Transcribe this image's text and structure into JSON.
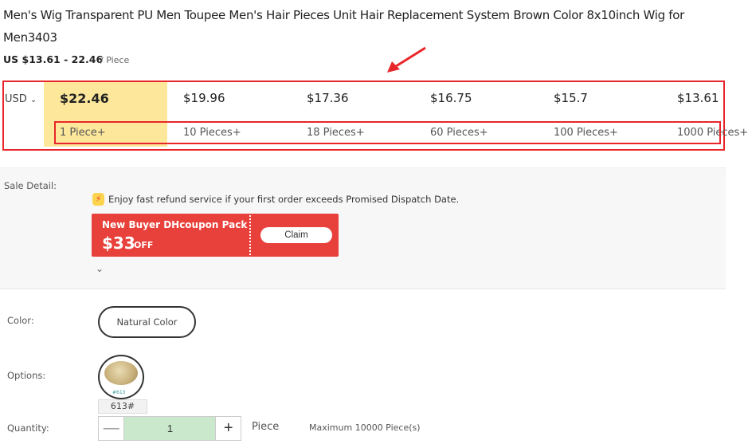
{
  "product": {
    "title": "Men's Wig Transparent PU Men Toupee Men's Hair Pieces Unit Hair Replacement System Brown Color 8x10inch Wig for Men3403",
    "price_range": "US $13.61 - 22.46",
    "unit": "/ Piece"
  },
  "pricing": {
    "currency": "USD",
    "tiers": [
      {
        "price": "$22.46",
        "qty": "1 Piece+"
      },
      {
        "price": "$19.96",
        "qty": "10 Pieces+"
      },
      {
        "price": "$17.36",
        "qty": "18 Pieces+"
      },
      {
        "price": "$16.75",
        "qty": "60 Pieces+"
      },
      {
        "price": "$15.7",
        "qty": "100 Pieces+"
      },
      {
        "price": "$13.61",
        "qty": "1000 Pieces+"
      }
    ]
  },
  "sale": {
    "label": "Sale Detail:",
    "refund": "Enjoy fast refund service if your first order exceeds Promised Dispatch Date.",
    "coupon_title": "New Buyer DHcoupon Pack",
    "coupon_amount": "$33",
    "coupon_off": "OFF",
    "claim": "Claim"
  },
  "color": {
    "label": "Color:",
    "value": "Natural Color"
  },
  "options": {
    "label": "Options:",
    "swatch_text": "#613",
    "value": "613#"
  },
  "quantity": {
    "label": "Quantity:",
    "value": "1",
    "unit": "Piece",
    "max": "Maximum 10000 Piece(s)"
  },
  "colors": {
    "accent": "#e8262a",
    "coupon": "#e8403a",
    "highlight": "#fde79b",
    "qty_bg": "#c9e8cc"
  }
}
